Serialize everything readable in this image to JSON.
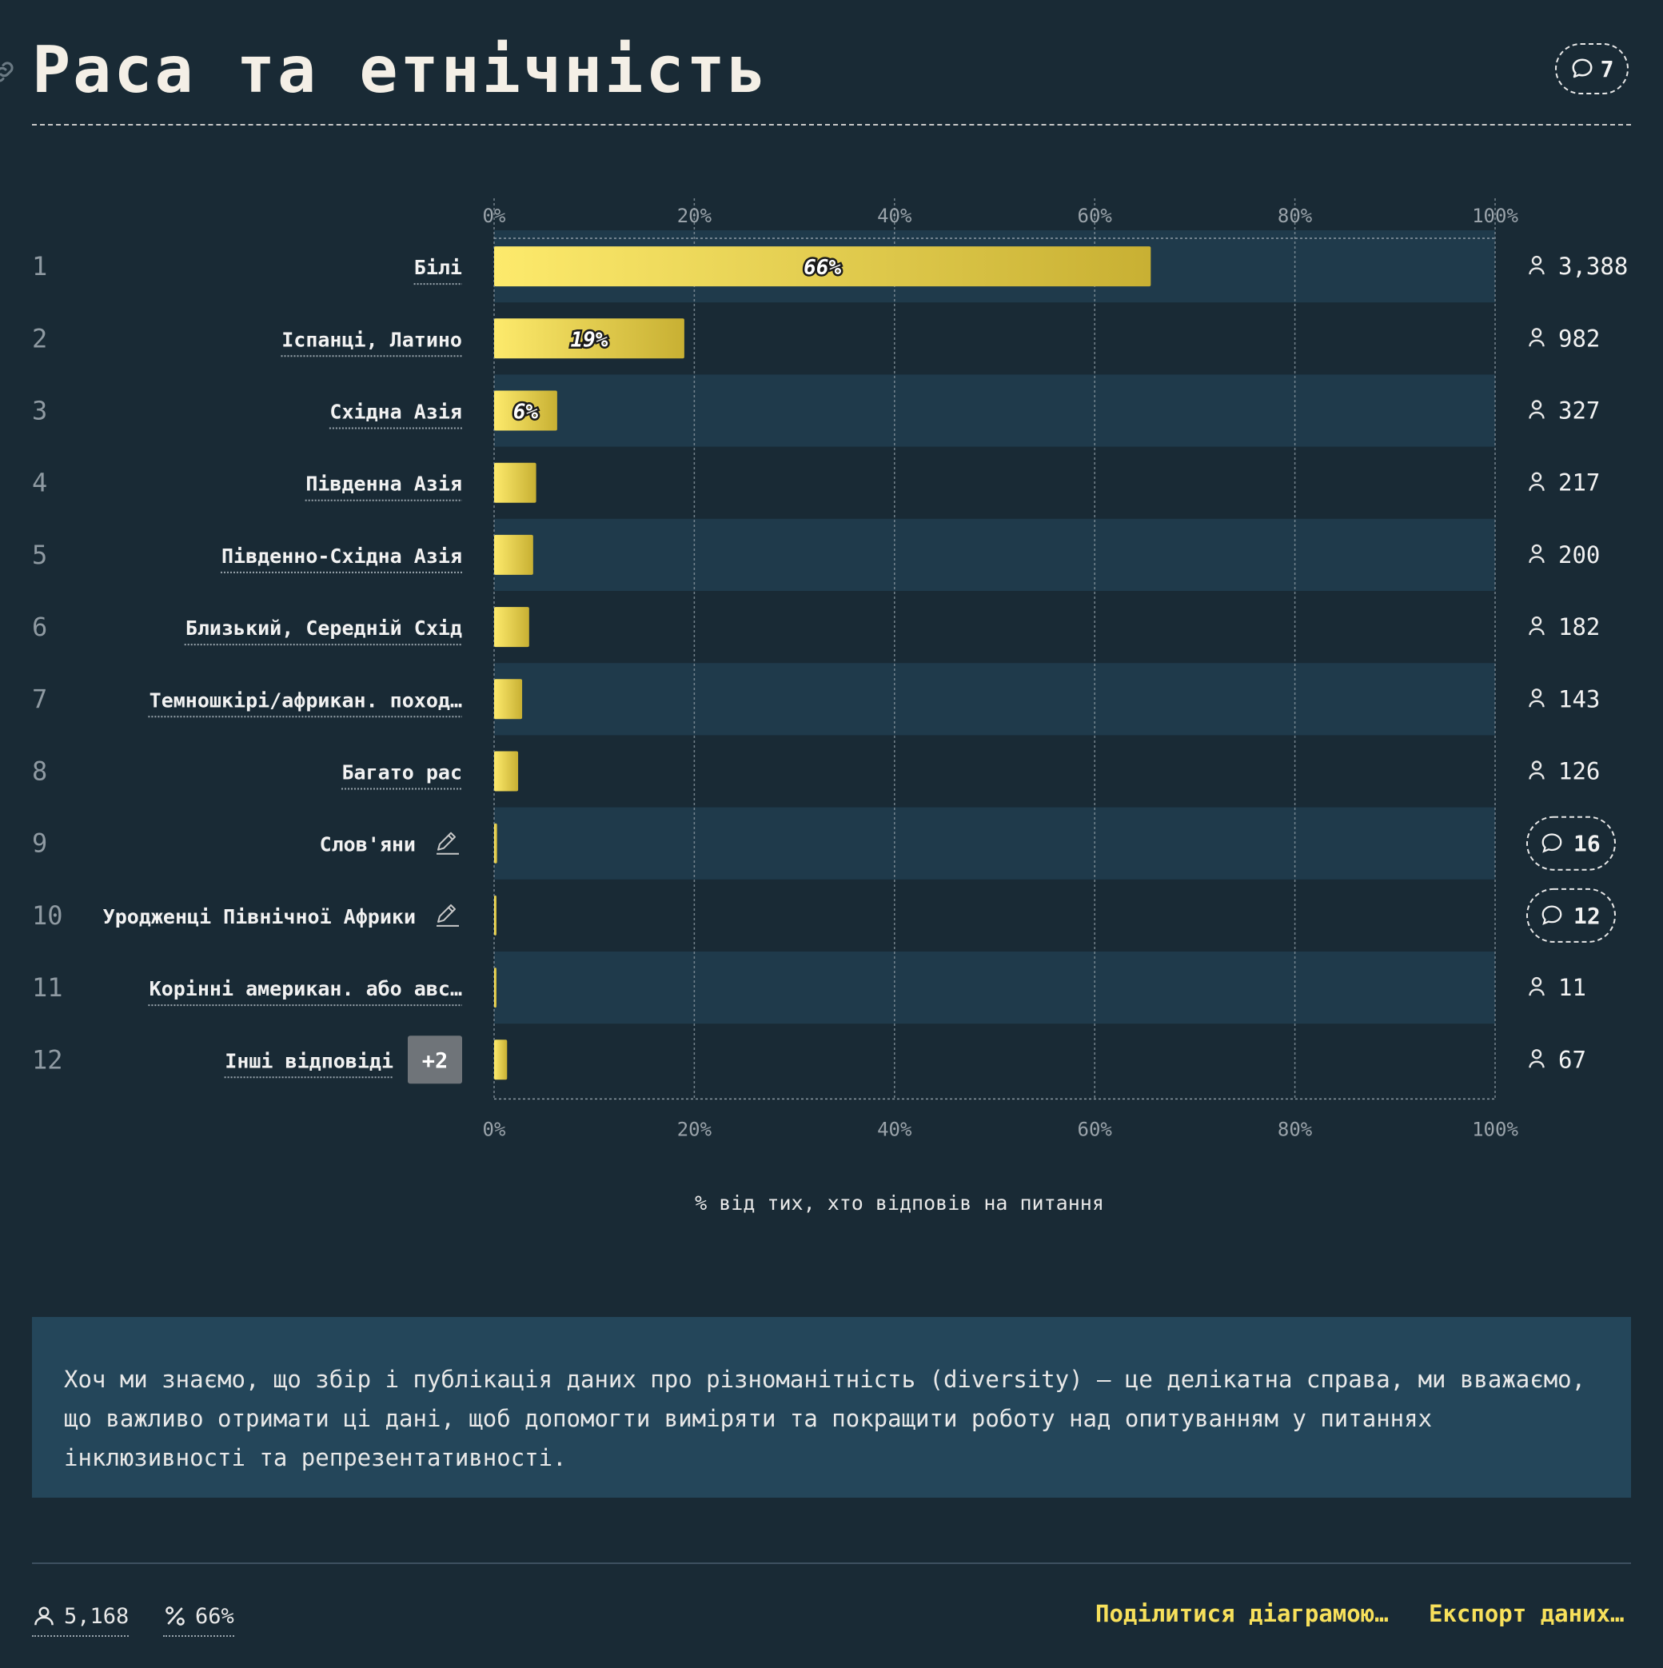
{
  "title": "Раса та етнічність",
  "title_comments": "7",
  "colors": {
    "background": "#192a35",
    "row_band": "#1f3a4b",
    "bar_light": "#fdea6c",
    "bar_dark": "#c8b033",
    "accent": "#f7e05b",
    "note_bg": "#24465a"
  },
  "icons": {
    "link": "link-icon",
    "comment": "comment-icon",
    "user": "user-icon",
    "edit": "pencil-icon",
    "percent": "percent-icon"
  },
  "chart_data": {
    "type": "bar",
    "orientation": "horizontal",
    "categories": [
      "Білі",
      "Іспанці, Латино",
      "Східна Азія",
      "Південна Азія",
      "Південно-Східна Азія",
      "Близький, Середній Схід",
      "Темношкірі/африкан. поход…",
      "Багато рас",
      "Слов'яни",
      "Уродженці Північної Африки",
      "Корінні американ. або авс…",
      "Інші відповіді"
    ],
    "ranks": [
      "1",
      "2",
      "3",
      "4",
      "5",
      "6",
      "7",
      "8",
      "9",
      "10",
      "11",
      "12"
    ],
    "values": [
      65.6,
      19.0,
      6.3,
      4.2,
      3.9,
      3.5,
      2.8,
      2.4,
      0.3,
      0.2,
      0.2,
      1.3
    ],
    "bar_labels": [
      "66%",
      "19%",
      "6%",
      "",
      "",
      "",
      "",
      "",
      "",
      "",
      "",
      ""
    ],
    "counts": [
      "3,388",
      "982",
      "327",
      "217",
      "200",
      "182",
      "143",
      "126",
      "",
      "",
      "11",
      "67"
    ],
    "comment_counts": [
      "",
      "",
      "",
      "",
      "",
      "",
      "",
      "",
      "16",
      "12",
      "",
      ""
    ],
    "editable": [
      false,
      false,
      false,
      false,
      false,
      false,
      false,
      false,
      true,
      true,
      false,
      false
    ],
    "other_badge": "+2",
    "xlim": [
      0,
      100
    ],
    "xticks": [
      "0%",
      "20%",
      "40%",
      "60%",
      "80%",
      "100%"
    ],
    "xlabel": "% від тих, хто відповів на питання",
    "grid": true
  },
  "note": "Хоч ми знаємо, що збір і публікація даних про різноманітність (diversity) — це делікатна справа, ми вважаємо,\nщо важливо отримати ці дані, щоб допомогти виміряти та покращити роботу над опитуванням у питаннях\nінклюзивності та репрезентативності.",
  "footer": {
    "respondents": "5,168",
    "percent": "66%",
    "share_label": "Поділитися діаграмою…",
    "export_label": "Експорт даних…"
  }
}
